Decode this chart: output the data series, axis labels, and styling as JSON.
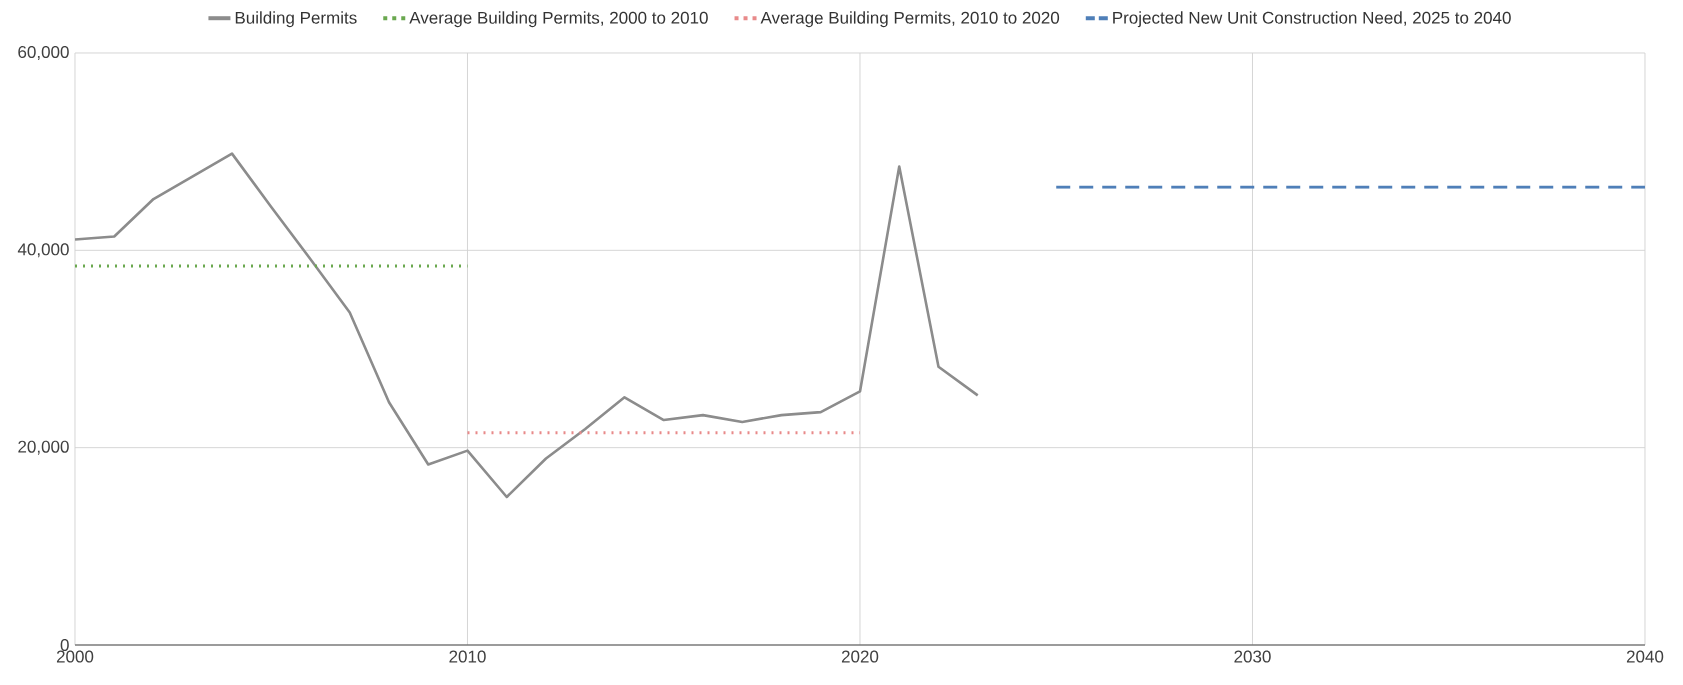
{
  "chart_data": {
    "type": "line",
    "series": [
      {
        "name": "Building Permits",
        "color": "#8c8c8c",
        "line_style": "solid",
        "x": [
          2000,
          2001,
          2002,
          2003,
          2004,
          2005,
          2006,
          2007,
          2008,
          2009,
          2010,
          2011,
          2012,
          2013,
          2014,
          2015,
          2016,
          2017,
          2018,
          2019,
          2020,
          2021,
          2022,
          2023
        ],
        "values": [
          41100,
          41400,
          45200,
          47500,
          49800,
          44400,
          39100,
          33700,
          24600,
          18300,
          19700,
          15000,
          18900,
          21900,
          25100,
          22800,
          23300,
          22600,
          23300,
          23600,
          25700,
          48500,
          28200,
          25300
        ]
      },
      {
        "name": "Average Building Permits, 2000 to 2010",
        "color": "#6aa84f",
        "line_style": "dotted",
        "x": [
          2000,
          2010
        ],
        "values": [
          38400,
          38400
        ]
      },
      {
        "name": "Average Building Permits, 2010 to 2020",
        "color": "#e88a8a",
        "line_style": "dotted",
        "x": [
          2010,
          2020
        ],
        "values": [
          21500,
          21500
        ]
      },
      {
        "name": "Projected New Unit Construction Need, 2025 to 2040",
        "color": "#4f7fb8",
        "line_style": "dashed",
        "x": [
          2025,
          2040
        ],
        "values": [
          46400,
          46400
        ]
      }
    ],
    "xlim": [
      2000,
      2040
    ],
    "xticks": [
      2000,
      2010,
      2020,
      2030,
      2040
    ],
    "ylim": [
      0,
      60000
    ],
    "yticks": [
      0,
      {
        "value": 20000,
        "label": "20,000"
      },
      {
        "value": 40000,
        "label": "40,000"
      },
      {
        "value": 60000,
        "label": "60,000"
      }
    ],
    "grid": true,
    "legend": "top",
    "marker": "none"
  }
}
